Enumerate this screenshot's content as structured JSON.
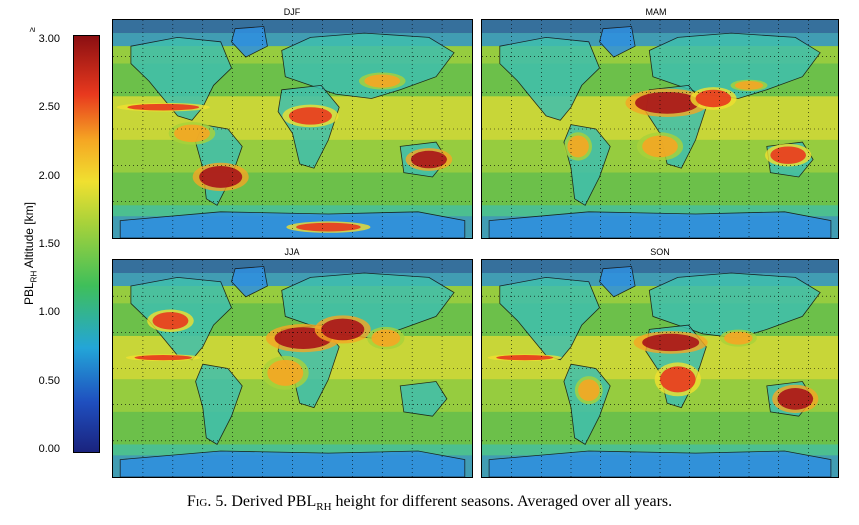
{
  "colorbar": {
    "flag": "≥",
    "label_main": "PBL",
    "label_sub": "RH",
    "label_rest": " Altitude [km]",
    "ticks": [
      "3.00",
      "2.50",
      "2.00",
      "1.50",
      "1.00",
      "0.50",
      "0.00"
    ],
    "colormap": "jet"
  },
  "panels": [
    {
      "title": "DJF"
    },
    {
      "title": "MAM"
    },
    {
      "title": "JJA"
    },
    {
      "title": "SON"
    }
  ],
  "caption": {
    "fig_prefix": "Fig",
    "fig_rest": ". 5. Derived PBL",
    "fig_sub": "RH",
    "fig_tail": " height for different seasons. Averaged over all years."
  },
  "colors": {
    "ocean_low": "#1f4fbf",
    "mid": "#7ec83a",
    "high": "#d7261e"
  }
}
